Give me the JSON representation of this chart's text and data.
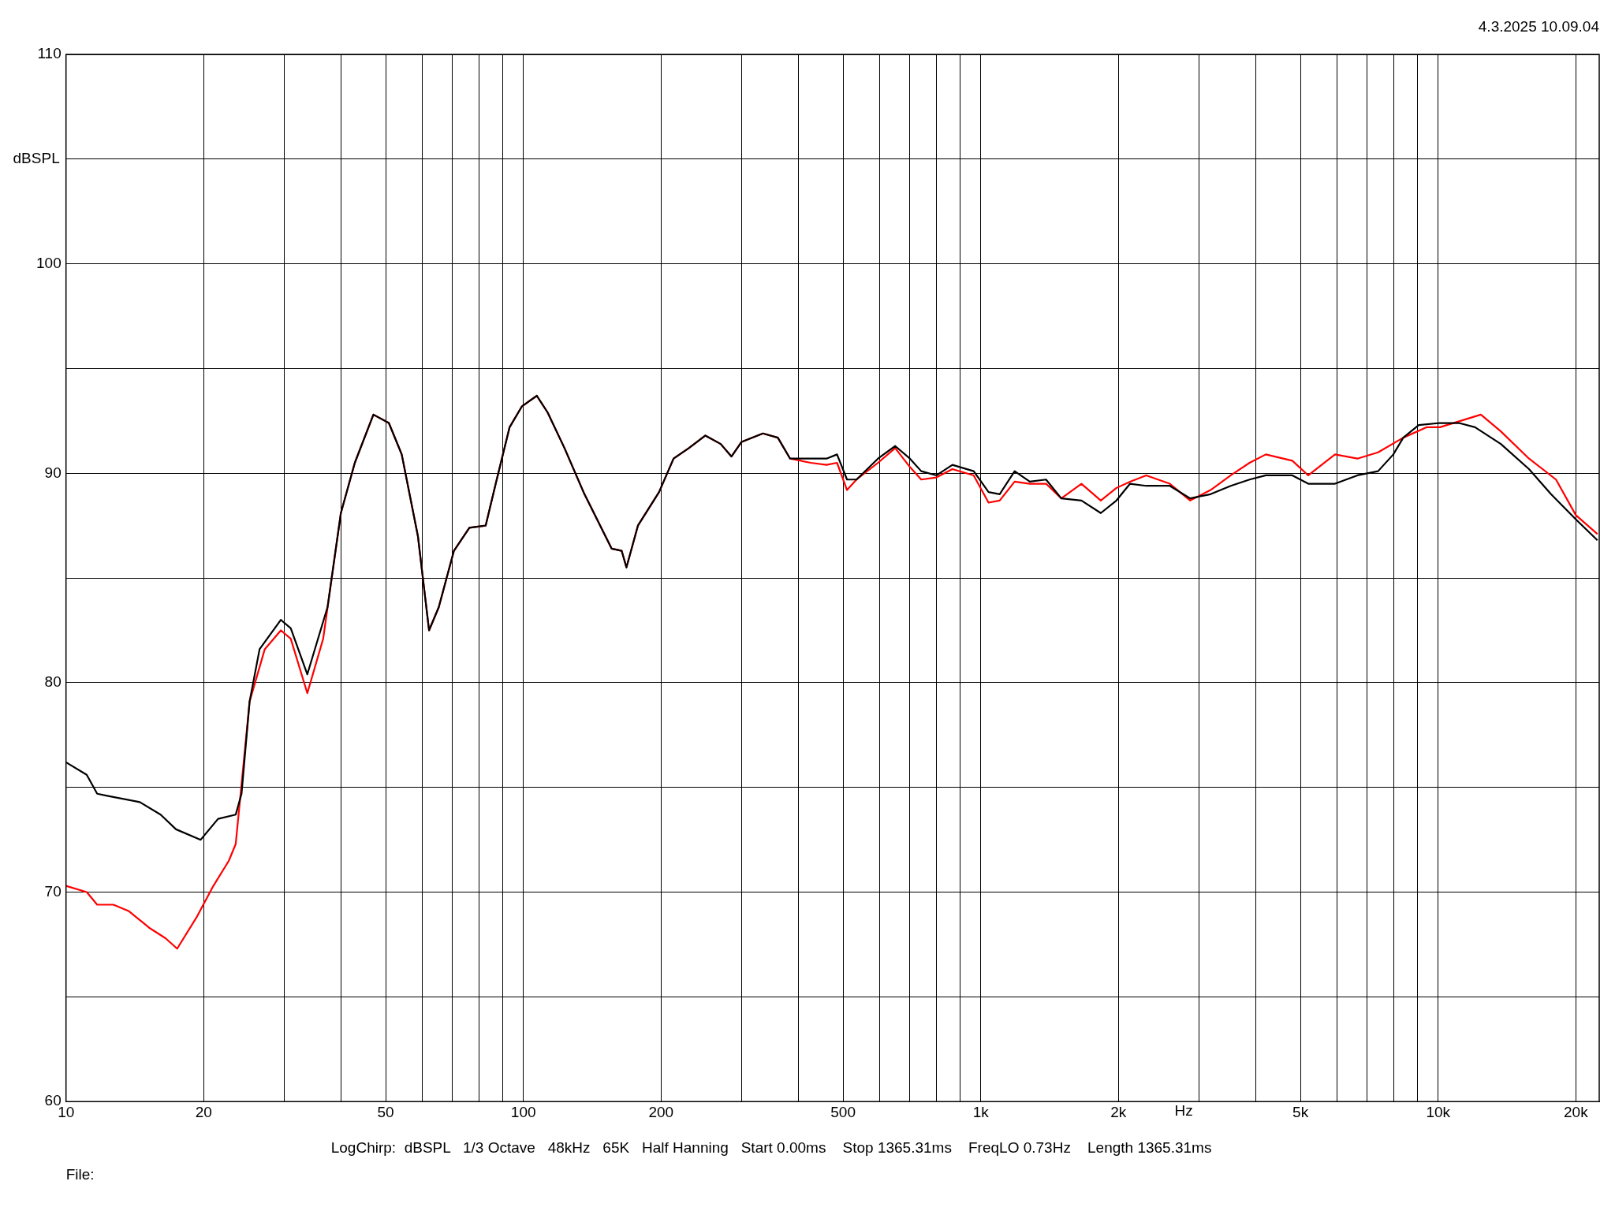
{
  "chart_data": {
    "type": "line",
    "xlabel": "Hz",
    "ylabel": "dBSPL",
    "log": "x",
    "grid": true,
    "marker": "none",
    "line_style": "solid",
    "annotations": [
      "4.3.2025 10.09.04",
      "LogChirp:  dBSPL   1/3 Octave   48kHz   65K   Half Hanning   Start 0.00ms    Stop 1365.31ms    FreqLO 0.73Hz    Length 1365.31ms",
      "File:"
    ],
    "xlim": [
      10,
      22500
    ],
    "xticks": [
      10,
      {
        "value": 20,
        "label": "20"
      },
      {
        "value": 30,
        "label": null
      },
      {
        "value": 40,
        "label": null
      },
      50,
      {
        "value": 60,
        "label": null
      },
      {
        "value": 70,
        "label": null
      },
      {
        "value": 80,
        "label": null
      },
      {
        "value": 90,
        "label": null
      },
      100,
      200,
      {
        "value": 300,
        "label": null
      },
      {
        "value": 400,
        "label": null
      },
      500,
      {
        "value": 600,
        "label": null
      },
      {
        "value": 700,
        "label": null
      },
      {
        "value": 800,
        "label": null
      },
      {
        "value": 900,
        "label": null
      },
      {
        "value": 1000,
        "label": "1k"
      },
      {
        "value": 2000,
        "label": "2k"
      },
      {
        "value": 3000,
        "label": null
      },
      {
        "value": 4000,
        "label": null
      },
      {
        "value": 5000,
        "label": "5k"
      },
      {
        "value": 6000,
        "label": null
      },
      {
        "value": 7000,
        "label": null
      },
      {
        "value": 8000,
        "label": null
      },
      {
        "value": 9000,
        "label": null
      },
      {
        "value": 10000,
        "label": "10k"
      },
      {
        "value": 20000,
        "label": "20k"
      }
    ],
    "ylim": [
      60,
      110
    ],
    "yticks": [
      60,
      {
        "value": 65,
        "label": null
      },
      70,
      {
        "value": 75,
        "label": null
      },
      80,
      {
        "value": 85,
        "label": null
      },
      90,
      {
        "value": 95,
        "label": null
      },
      100,
      {
        "value": 105,
        "label": null
      },
      110
    ],
    "series": [
      {
        "color": "#000000",
        "x": [
          10,
          11.1,
          11.7,
          12.3,
          14.5,
          16.1,
          17.4,
          19.7,
          21.5,
          23.5,
          24.2,
          25.2,
          26.5,
          29.5,
          31,
          33.7,
          37.3,
          39.9,
          42.8,
          47,
          50.8,
          54.2,
          58.8,
          62.2,
          65.3,
          70.5,
          76.2,
          82.7,
          87,
          93.3,
          99.3,
          107,
          113,
          123,
          136,
          156,
          164,
          168,
          178,
          198,
          213,
          230,
          250,
          270,
          285,
          300,
          334,
          360,
          383,
          425,
          460,
          485,
          510,
          535,
          596,
          650,
          700,
          741,
          800,
          867,
          965,
          1040,
          1100,
          1186,
          1280,
          1389,
          1500,
          1660,
          1830,
          1980,
          2120,
          2300,
          2590,
          2870,
          3180,
          3520,
          3870,
          4200,
          4800,
          5200,
          5950,
          6660,
          7390,
          7980,
          8390,
          9070,
          10090,
          11100,
          12040,
          13710,
          15800,
          17650,
          20000,
          22300
        ],
        "values": [
          76.2,
          75.6,
          74.7,
          74.6,
          74.3,
          73.7,
          73.0,
          72.5,
          73.5,
          73.7,
          74.7,
          79.1,
          81.6,
          83.0,
          82.6,
          80.4,
          83.6,
          88.1,
          90.5,
          92.8,
          92.4,
          90.9,
          87.0,
          82.5,
          83.6,
          86.3,
          87.4,
          87.5,
          89.5,
          92.2,
          93.2,
          93.7,
          92.9,
          91.2,
          89.0,
          86.4,
          86.3,
          85.5,
          87.5,
          89.1,
          90.7,
          91.2,
          91.8,
          91.4,
          90.8,
          91.5,
          91.9,
          91.7,
          90.7,
          90.7,
          90.7,
          90.9,
          89.7,
          89.7,
          90.7,
          91.3,
          90.7,
          90.1,
          89.9,
          90.4,
          90.1,
          89.1,
          89.0,
          90.1,
          89.6,
          89.7,
          88.8,
          88.7,
          88.1,
          88.7,
          89.5,
          89.4,
          89.4,
          88.8,
          89.0,
          89.4,
          89.7,
          89.9,
          89.9,
          89.5,
          89.5,
          89.9,
          90.1,
          90.9,
          91.7,
          92.3,
          92.4,
          92.4,
          92.2,
          91.4,
          90.2,
          89.0,
          87.8,
          86.8
        ]
      },
      {
        "color": "#ff0000",
        "x": [
          10,
          11.1,
          11.7,
          12.7,
          13.7,
          15.2,
          16.5,
          17.5,
          19.3,
          21,
          22.7,
          23.5,
          25.2,
          27.2,
          29.5,
          31,
          33.7,
          36.5,
          39.9,
          42.8,
          47,
          50.8,
          54.2,
          58.8,
          62.2,
          65.3,
          70.5,
          76.2,
          82.7,
          87,
          93.3,
          99.3,
          107,
          113,
          123,
          136,
          156,
          164,
          168,
          178,
          198,
          213,
          230,
          250,
          270,
          285,
          300,
          334,
          360,
          383,
          425,
          460,
          485,
          510,
          535,
          596,
          650,
          700,
          741,
          800,
          867,
          965,
          1040,
          1100,
          1186,
          1280,
          1389,
          1500,
          1660,
          1830,
          1980,
          2120,
          2300,
          2590,
          2870,
          3180,
          3520,
          3870,
          4200,
          4800,
          5200,
          5950,
          6660,
          7390,
          8390,
          9450,
          10090,
          12400,
          13710,
          15800,
          18100,
          20000,
          22300
        ],
        "values": [
          70.3,
          70.0,
          69.4,
          69.4,
          69.1,
          68.3,
          67.8,
          67.3,
          68.8,
          70.3,
          71.5,
          72.3,
          79.1,
          81.6,
          82.5,
          82.1,
          79.5,
          82.1,
          88.1,
          90.5,
          92.8,
          92.4,
          90.9,
          87.0,
          82.5,
          83.6,
          86.3,
          87.4,
          87.5,
          89.5,
          92.2,
          93.2,
          93.7,
          92.9,
          91.2,
          89.0,
          86.4,
          86.3,
          85.5,
          87.5,
          89.1,
          90.7,
          91.2,
          91.8,
          91.4,
          90.8,
          91.5,
          91.9,
          91.7,
          90.7,
          90.5,
          90.4,
          90.5,
          89.2,
          89.7,
          90.5,
          91.2,
          90.3,
          89.7,
          89.8,
          90.2,
          89.9,
          88.6,
          88.7,
          89.6,
          89.5,
          89.5,
          88.8,
          89.5,
          88.7,
          89.3,
          89.6,
          89.9,
          89.5,
          88.7,
          89.2,
          89.9,
          90.5,
          90.9,
          90.6,
          89.9,
          90.9,
          90.7,
          91.0,
          91.7,
          92.2,
          92.2,
          92.8,
          92.0,
          90.7,
          89.7,
          88.0,
          87.1
        ]
      }
    ]
  }
}
